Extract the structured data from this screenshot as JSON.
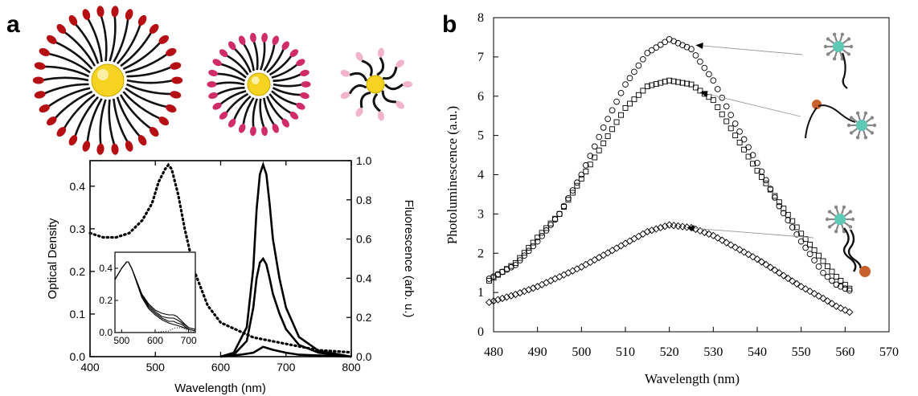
{
  "chart_data": [
    {
      "panel": "a",
      "type": "line",
      "xlabel": "Wavelength (nm)",
      "ylabel": "Optical Density",
      "y2label": "Fluorescence (arb. u.)",
      "xlim": [
        400,
        800
      ],
      "ylim": [
        0,
        0.46
      ],
      "y2lim": [
        0,
        1.0
      ],
      "xticks": [
        "400",
        "500",
        "600",
        "700",
        "800"
      ],
      "yticks": [
        "0.0",
        "0.1",
        "0.2",
        "0.3",
        "0.4"
      ],
      "y2ticks": [
        "0.0",
        "0.2",
        "0.4",
        "0.6",
        "0.8",
        "1.0"
      ],
      "absorbance": {
        "style": "dotted",
        "x": [
          400,
          420,
          440,
          460,
          480,
          495,
          505,
          515,
          520,
          525,
          535,
          545,
          560,
          580,
          600,
          650,
          700,
          750,
          800
        ],
        "y": [
          0.29,
          0.28,
          0.28,
          0.29,
          0.32,
          0.36,
          0.41,
          0.44,
          0.45,
          0.44,
          0.38,
          0.3,
          0.2,
          0.12,
          0.08,
          0.045,
          0.03,
          0.015,
          0.01
        ]
      },
      "fluorescence": [
        {
          "x": [
            600,
            620,
            640,
            650,
            655,
            660,
            665,
            670,
            675,
            680,
            690,
            700,
            720,
            750,
            800
          ],
          "y": [
            0.0,
            0.02,
            0.15,
            0.45,
            0.75,
            0.93,
            0.98,
            0.93,
            0.78,
            0.6,
            0.4,
            0.25,
            0.1,
            0.03,
            0.0
          ]
        },
        {
          "x": [
            600,
            620,
            640,
            650,
            655,
            660,
            665,
            670,
            675,
            680,
            690,
            700,
            720,
            750,
            800
          ],
          "y": [
            0.0,
            0.01,
            0.08,
            0.25,
            0.4,
            0.48,
            0.5,
            0.47,
            0.4,
            0.32,
            0.22,
            0.14,
            0.06,
            0.02,
            0.0
          ]
        },
        {
          "x": [
            600,
            630,
            650,
            660,
            665,
            670,
            680,
            700,
            720,
            760,
            800
          ],
          "y": [
            0.0,
            0.01,
            0.02,
            0.04,
            0.05,
            0.045,
            0.035,
            0.02,
            0.01,
            0.005,
            0.0
          ]
        }
      ],
      "inset": {
        "xlim": [
          480,
          720
        ],
        "ylim": [
          0,
          0.5
        ],
        "xticks": [
          "500",
          "600",
          "700"
        ],
        "yticks": [
          "0.0",
          "0.2",
          "0.4"
        ],
        "series": [
          {
            "x": [
              480,
              500,
              515,
              520,
              530,
              545,
              560,
              580,
              600,
              620,
              640,
              655,
              665,
              680,
              700,
              720
            ],
            "y": [
              0.33,
              0.4,
              0.44,
              0.44,
              0.4,
              0.32,
              0.24,
              0.18,
              0.14,
              0.12,
              0.11,
              0.11,
              0.1,
              0.07,
              0.03,
              0.02
            ]
          },
          {
            "x": [
              480,
              500,
              515,
              520,
              530,
              545,
              560,
              580,
              600,
              620,
              640,
              655,
              665,
              680,
              700,
              720
            ],
            "y": [
              0.33,
              0.4,
              0.44,
              0.44,
              0.4,
              0.32,
              0.24,
              0.17,
              0.13,
              0.1,
              0.09,
              0.09,
              0.08,
              0.06,
              0.03,
              0.02
            ]
          },
          {
            "x": [
              480,
              500,
              515,
              520,
              530,
              545,
              560,
              580,
              600,
              620,
              640,
              655,
              665,
              680,
              700,
              720
            ],
            "y": [
              0.33,
              0.4,
              0.44,
              0.44,
              0.4,
              0.32,
              0.23,
              0.16,
              0.12,
              0.09,
              0.07,
              0.07,
              0.06,
              0.05,
              0.02,
              0.01
            ]
          },
          {
            "x": [
              480,
              500,
              515,
              520,
              530,
              545,
              560,
              580,
              600,
              620,
              640,
              655,
              665,
              680,
              700,
              720
            ],
            "y": [
              0.33,
              0.4,
              0.44,
              0.44,
              0.4,
              0.31,
              0.22,
              0.15,
              0.11,
              0.08,
              0.06,
              0.05,
              0.045,
              0.035,
              0.02,
              0.01
            ]
          }
        ],
        "dotted": {
          "x": [
            480,
            600,
            640,
            660,
            680,
            700,
            720
          ],
          "y": [
            0.0,
            0.0,
            0.01,
            0.03,
            0.03,
            0.01,
            0.0
          ]
        }
      }
    },
    {
      "panel": "b",
      "type": "scatter",
      "xlabel": "Wavelength (nm)",
      "ylabel": "Photoluminescence (a.u.)",
      "xlim": [
        480,
        570
      ],
      "ylim": [
        0,
        8
      ],
      "xticks": [
        "480",
        "490",
        "500",
        "510",
        "520",
        "530",
        "540",
        "550",
        "560",
        "570"
      ],
      "yticks": [
        "0",
        "1",
        "2",
        "3",
        "4",
        "5",
        "6",
        "7",
        "8"
      ],
      "series": [
        {
          "marker": "circle",
          "x": [
            479,
            485,
            490,
            495,
            500,
            505,
            510,
            515,
            520,
            525,
            530,
            535,
            540,
            545,
            550,
            555,
            558,
            561
          ],
          "y": [
            1.35,
            1.7,
            2.3,
            3.0,
            4.0,
            5.2,
            6.3,
            7.1,
            7.45,
            7.2,
            6.4,
            5.3,
            4.3,
            3.2,
            2.3,
            1.5,
            1.2,
            1.05
          ]
        },
        {
          "marker": "square",
          "x": [
            479,
            485,
            490,
            495,
            500,
            505,
            510,
            515,
            520,
            525,
            530,
            535,
            540,
            545,
            550,
            555,
            558,
            561
          ],
          "y": [
            1.3,
            1.75,
            2.4,
            3.0,
            3.9,
            4.8,
            5.7,
            6.25,
            6.4,
            6.3,
            5.9,
            5.0,
            4.1,
            3.3,
            2.5,
            1.8,
            1.4,
            1.1
          ]
        },
        {
          "marker": "diamond",
          "x": [
            479,
            485,
            490,
            495,
            500,
            505,
            510,
            515,
            520,
            525,
            530,
            535,
            540,
            545,
            550,
            555,
            558,
            561
          ],
          "y": [
            0.75,
            0.95,
            1.15,
            1.4,
            1.65,
            1.95,
            2.25,
            2.55,
            2.72,
            2.65,
            2.45,
            2.15,
            1.85,
            1.5,
            1.15,
            0.85,
            0.65,
            0.5
          ]
        }
      ],
      "annotations": [
        {
          "kind": "arrow",
          "points_to": [
            526,
            7.3
          ],
          "icon": "nanoparticle-with-ssdna-icon"
        },
        {
          "kind": "arrow",
          "points_to": [
            527,
            6.1
          ],
          "icon": "nanoparticle-ssdna-with-quencher-icon"
        },
        {
          "kind": "arrow",
          "points_to": [
            524,
            2.65
          ],
          "icon": "nanoparticle-dsdna-quencher-icon"
        }
      ]
    }
  ],
  "panels": {
    "a": {
      "letter": "a"
    },
    "b": {
      "letter": "b"
    }
  },
  "illustrations": [
    {
      "icon": "large-ligand-nanoparticle-icon",
      "head_color": "#b50f14"
    },
    {
      "icon": "medium-ligand-nanoparticle-icon",
      "head_color": "#d12c6a"
    },
    {
      "icon": "small-ligand-nanoparticle-icon",
      "head_color": "#f2b3cc"
    }
  ],
  "colors": {
    "core": "#f5d320",
    "bead": "#5ec9b5",
    "quencher": "#c8602c",
    "spoke": "#888888"
  }
}
